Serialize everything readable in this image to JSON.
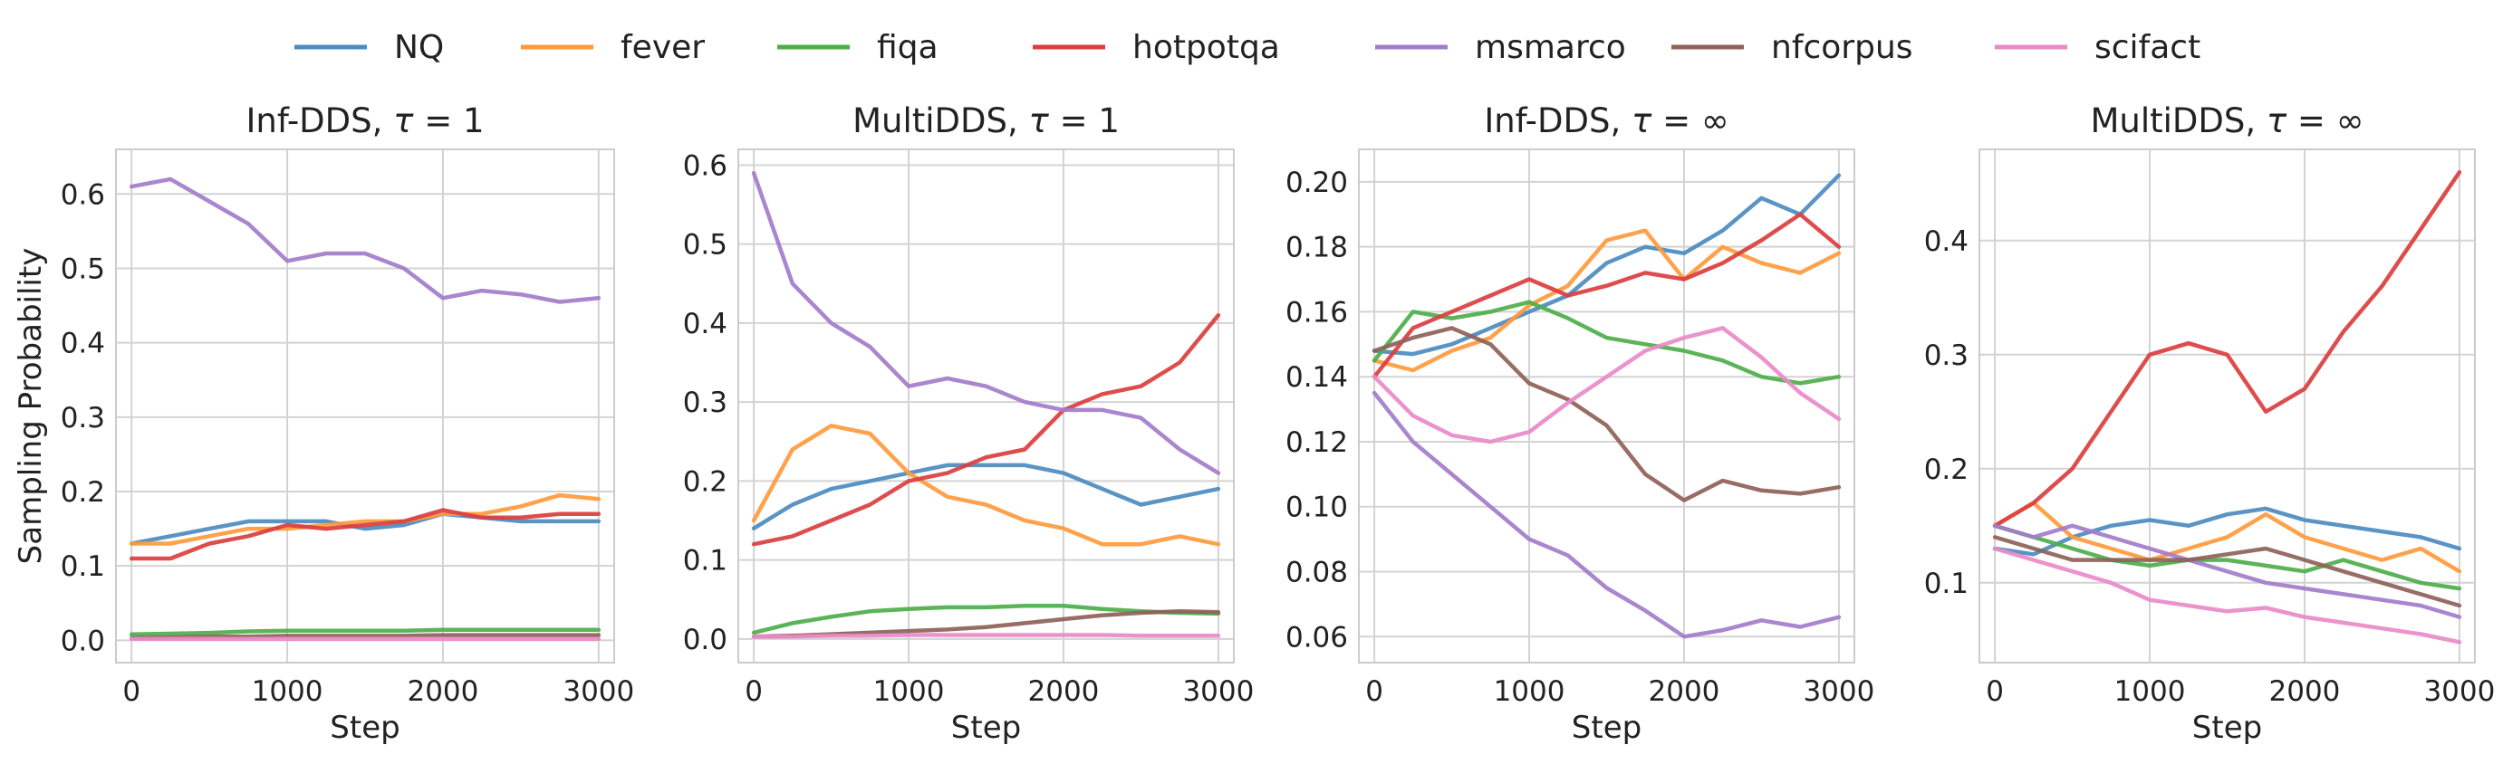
{
  "figure": {
    "legend": [
      {
        "name": "NQ",
        "color": "#4C8BBF"
      },
      {
        "name": "fever",
        "color": "#FF9A3C"
      },
      {
        "name": "fiqa",
        "color": "#4DAE4A"
      },
      {
        "name": "hotpotqa",
        "color": "#DB3E3F"
      },
      {
        "name": "msmarco",
        "color": "#A27CC9"
      },
      {
        "name": "nfcorpus",
        "color": "#8E6258"
      },
      {
        "name": "scifact",
        "color": "#E98AC8"
      }
    ],
    "ylabel": "Sampling Probability",
    "xlabel": "Step"
  },
  "chart_data": [
    {
      "type": "line",
      "title": "Inf-DDS, τ = 1",
      "xlabel": "Step",
      "ylabel": "Sampling Probability",
      "xlim": [
        -100,
        3100
      ],
      "ylim": [
        -0.03,
        0.66
      ],
      "xticks": [
        0,
        1000,
        2000,
        3000
      ],
      "yticks": [
        0.0,
        0.1,
        0.2,
        0.3,
        0.4,
        0.5,
        0.6
      ],
      "ytick_labels": [
        "0.0",
        "0.1",
        "0.2",
        "0.3",
        "0.4",
        "0.5",
        "0.6"
      ],
      "x": [
        0,
        250,
        500,
        750,
        1000,
        1250,
        1500,
        1750,
        2000,
        2250,
        2500,
        2750,
        3000
      ],
      "series": [
        {
          "name": "NQ",
          "values": [
            0.13,
            0.14,
            0.15,
            0.16,
            0.16,
            0.16,
            0.15,
            0.155,
            0.17,
            0.165,
            0.16,
            0.16,
            0.16
          ]
        },
        {
          "name": "fever",
          "values": [
            0.13,
            0.13,
            0.14,
            0.15,
            0.15,
            0.155,
            0.16,
            0.16,
            0.17,
            0.17,
            0.18,
            0.195,
            0.19
          ]
        },
        {
          "name": "fiqa",
          "values": [
            0.008,
            0.009,
            0.01,
            0.012,
            0.013,
            0.013,
            0.013,
            0.013,
            0.014,
            0.014,
            0.014,
            0.014,
            0.014
          ]
        },
        {
          "name": "hotpotqa",
          "values": [
            0.11,
            0.11,
            0.13,
            0.14,
            0.155,
            0.15,
            0.155,
            0.16,
            0.175,
            0.165,
            0.165,
            0.17,
            0.17
          ]
        },
        {
          "name": "msmarco",
          "values": [
            0.61,
            0.62,
            0.59,
            0.56,
            0.51,
            0.52,
            0.52,
            0.5,
            0.46,
            0.47,
            0.465,
            0.455,
            0.46
          ]
        },
        {
          "name": "nfcorpus",
          "values": [
            0.003,
            0.004,
            0.005,
            0.005,
            0.006,
            0.006,
            0.006,
            0.006,
            0.007,
            0.007,
            0.007,
            0.007,
            0.007
          ]
        },
        {
          "name": "scifact",
          "values": [
            0.002,
            0.002,
            0.002,
            0.002,
            0.002,
            0.002,
            0.002,
            0.002,
            0.002,
            0.002,
            0.002,
            0.002,
            0.002
          ]
        }
      ]
    },
    {
      "type": "line",
      "title": "MultiDDS, τ = 1",
      "xlabel": "Step",
      "ylabel": "",
      "xlim": [
        -100,
        3100
      ],
      "ylim": [
        -0.03,
        0.62
      ],
      "xticks": [
        0,
        1000,
        2000,
        3000
      ],
      "yticks": [
        0.0,
        0.1,
        0.2,
        0.3,
        0.4,
        0.5,
        0.6
      ],
      "ytick_labels": [
        "0.0",
        "0.1",
        "0.2",
        "0.3",
        "0.4",
        "0.5",
        "0.6"
      ],
      "x": [
        0,
        250,
        500,
        750,
        1000,
        1250,
        1500,
        1750,
        2000,
        2250,
        2500,
        2750,
        3000
      ],
      "series": [
        {
          "name": "NQ",
          "values": [
            0.14,
            0.17,
            0.19,
            0.2,
            0.21,
            0.22,
            0.22,
            0.22,
            0.21,
            0.19,
            0.17,
            0.18,
            0.19
          ]
        },
        {
          "name": "fever",
          "values": [
            0.15,
            0.24,
            0.27,
            0.26,
            0.21,
            0.18,
            0.17,
            0.15,
            0.14,
            0.12,
            0.12,
            0.13,
            0.12
          ]
        },
        {
          "name": "fiqa",
          "values": [
            0.008,
            0.02,
            0.028,
            0.035,
            0.038,
            0.04,
            0.04,
            0.042,
            0.042,
            0.038,
            0.035,
            0.033,
            0.032
          ]
        },
        {
          "name": "hotpotqa",
          "values": [
            0.12,
            0.13,
            0.15,
            0.17,
            0.2,
            0.21,
            0.23,
            0.24,
            0.29,
            0.31,
            0.32,
            0.35,
            0.41
          ]
        },
        {
          "name": "msmarco",
          "values": [
            0.59,
            0.45,
            0.4,
            0.37,
            0.32,
            0.33,
            0.32,
            0.3,
            0.29,
            0.29,
            0.28,
            0.24,
            0.21
          ]
        },
        {
          "name": "nfcorpus",
          "values": [
            0.003,
            0.004,
            0.006,
            0.008,
            0.01,
            0.012,
            0.015,
            0.02,
            0.025,
            0.03,
            0.033,
            0.035,
            0.034
          ]
        },
        {
          "name": "scifact",
          "values": [
            0.003,
            0.003,
            0.004,
            0.004,
            0.005,
            0.005,
            0.005,
            0.005,
            0.005,
            0.005,
            0.004,
            0.004,
            0.004
          ]
        }
      ]
    },
    {
      "type": "line",
      "title": "Inf-DDS, τ = ∞",
      "xlabel": "Step",
      "ylabel": "",
      "xlim": [
        -100,
        3100
      ],
      "ylim": [
        0.052,
        0.21
      ],
      "xticks": [
        0,
        1000,
        2000,
        3000
      ],
      "yticks": [
        0.06,
        0.08,
        0.1,
        0.12,
        0.14,
        0.16,
        0.18,
        0.2
      ],
      "ytick_labels": [
        "0.06",
        "0.08",
        "0.10",
        "0.12",
        "0.14",
        "0.16",
        "0.18",
        "0.20"
      ],
      "x": [
        0,
        250,
        500,
        750,
        1000,
        1250,
        1500,
        1750,
        2000,
        2250,
        2500,
        2750,
        3000
      ],
      "series": [
        {
          "name": "NQ",
          "values": [
            0.148,
            0.147,
            0.15,
            0.155,
            0.16,
            0.165,
            0.175,
            0.18,
            0.178,
            0.185,
            0.195,
            0.19,
            0.202
          ]
        },
        {
          "name": "fever",
          "values": [
            0.145,
            0.142,
            0.148,
            0.152,
            0.162,
            0.168,
            0.182,
            0.185,
            0.17,
            0.18,
            0.175,
            0.172,
            0.178
          ]
        },
        {
          "name": "fiqa",
          "values": [
            0.145,
            0.16,
            0.158,
            0.16,
            0.163,
            0.158,
            0.152,
            0.15,
            0.148,
            0.145,
            0.14,
            0.138,
            0.14
          ]
        },
        {
          "name": "hotpotqa",
          "values": [
            0.14,
            0.155,
            0.16,
            0.165,
            0.17,
            0.165,
            0.168,
            0.172,
            0.17,
            0.175,
            0.182,
            0.19,
            0.18
          ]
        },
        {
          "name": "msmarco",
          "values": [
            0.135,
            0.12,
            0.11,
            0.1,
            0.09,
            0.085,
            0.075,
            0.068,
            0.06,
            0.062,
            0.065,
            0.063,
            0.066
          ]
        },
        {
          "name": "nfcorpus",
          "values": [
            0.148,
            0.152,
            0.155,
            0.15,
            0.138,
            0.133,
            0.125,
            0.11,
            0.102,
            0.108,
            0.105,
            0.104,
            0.106
          ]
        },
        {
          "name": "scifact",
          "values": [
            0.14,
            0.128,
            0.122,
            0.12,
            0.123,
            0.132,
            0.14,
            0.148,
            0.152,
            0.155,
            0.146,
            0.135,
            0.127
          ]
        }
      ]
    },
    {
      "type": "line",
      "title": "MultiDDS, τ = ∞",
      "xlabel": "Step",
      "ylabel": "",
      "xlim": [
        -100,
        3100
      ],
      "ylim": [
        0.03,
        0.48
      ],
      "xticks": [
        0,
        1000,
        2000,
        3000
      ],
      "yticks": [
        0.1,
        0.2,
        0.3,
        0.4
      ],
      "ytick_labels": [
        "0.1",
        "0.2",
        "0.3",
        "0.4"
      ],
      "x": [
        0,
        250,
        500,
        750,
        1000,
        1250,
        1500,
        1750,
        2000,
        2250,
        2500,
        2750,
        3000
      ],
      "series": [
        {
          "name": "NQ",
          "values": [
            0.13,
            0.125,
            0.14,
            0.15,
            0.155,
            0.15,
            0.16,
            0.165,
            0.155,
            0.15,
            0.145,
            0.14,
            0.13
          ]
        },
        {
          "name": "fever",
          "values": [
            0.15,
            0.17,
            0.14,
            0.13,
            0.12,
            0.13,
            0.14,
            0.16,
            0.14,
            0.13,
            0.12,
            0.13,
            0.11
          ]
        },
        {
          "name": "fiqa",
          "values": [
            0.15,
            0.14,
            0.13,
            0.12,
            0.115,
            0.12,
            0.12,
            0.115,
            0.11,
            0.12,
            0.11,
            0.1,
            0.095
          ]
        },
        {
          "name": "hotpotqa",
          "values": [
            0.15,
            0.17,
            0.2,
            0.25,
            0.3,
            0.31,
            0.3,
            0.25,
            0.27,
            0.32,
            0.36,
            0.41,
            0.46
          ]
        },
        {
          "name": "msmarco",
          "values": [
            0.15,
            0.14,
            0.15,
            0.14,
            0.13,
            0.12,
            0.11,
            0.1,
            0.095,
            0.09,
            0.085,
            0.08,
            0.07
          ]
        },
        {
          "name": "nfcorpus",
          "values": [
            0.14,
            0.13,
            0.12,
            0.12,
            0.12,
            0.12,
            0.125,
            0.13,
            0.12,
            0.11,
            0.1,
            0.09,
            0.08
          ]
        },
        {
          "name": "scifact",
          "values": [
            0.13,
            0.12,
            0.11,
            0.1,
            0.085,
            0.08,
            0.075,
            0.078,
            0.07,
            0.065,
            0.06,
            0.055,
            0.048
          ]
        }
      ]
    }
  ]
}
